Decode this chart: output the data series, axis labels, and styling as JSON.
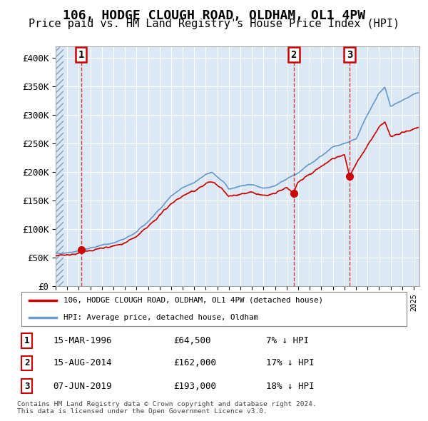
{
  "title": "106, HODGE CLOUGH ROAD, OLDHAM, OL1 4PW",
  "subtitle": "Price paid vs. HM Land Registry's House Price Index (HPI)",
  "title_fontsize": 13,
  "subtitle_fontsize": 11,
  "background_color": "#ffffff",
  "plot_bg_color": "#dce9f5",
  "grid_color": "#ffffff",
  "ylabel_ticks": [
    "£0",
    "£50K",
    "£100K",
    "£150K",
    "£200K",
    "£250K",
    "£300K",
    "£350K",
    "£400K"
  ],
  "ytick_values": [
    0,
    50000,
    100000,
    150000,
    200000,
    250000,
    300000,
    350000,
    400000
  ],
  "ylim": [
    0,
    420000
  ],
  "xlim_start": 1994.0,
  "xlim_end": 2025.5,
  "red_line_color": "#cc0000",
  "blue_line_color": "#6699cc",
  "marker_color": "#cc0000",
  "dashed_line_color": "#cc0000",
  "legend_labels": [
    "106, HODGE CLOUGH ROAD, OLDHAM, OL1 4PW (detached house)",
    "HPI: Average price, detached house, Oldham"
  ],
  "transactions": [
    {
      "num": 1,
      "date_x": 1996.21,
      "price": 64500,
      "label": "1",
      "date_str": "15-MAR-1996",
      "price_str": "£64,500",
      "pct_str": "7% ↓ HPI"
    },
    {
      "num": 2,
      "date_x": 2014.62,
      "price": 162000,
      "label": "2",
      "date_str": "15-AUG-2014",
      "price_str": "£162,000",
      "pct_str": "17% ↓ HPI"
    },
    {
      "num": 3,
      "date_x": 2019.44,
      "price": 193000,
      "label": "3",
      "date_str": "07-JUN-2019",
      "price_str": "£193,000",
      "pct_str": "18% ↓ HPI"
    }
  ],
  "footnote": "Contains HM Land Registry data © Crown copyright and database right 2024.\nThis data is licensed under the Open Government Licence v3.0."
}
